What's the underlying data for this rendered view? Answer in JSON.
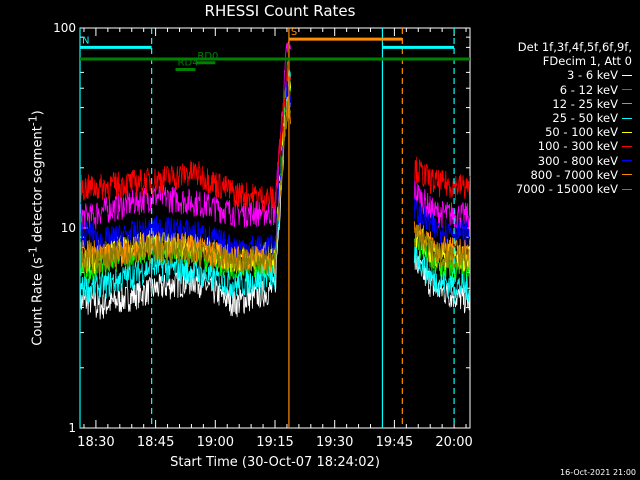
{
  "chart_data": {
    "type": "line",
    "title": "RHESSI Count Rates",
    "xlabel": "Start Time (30-Oct-07 18:24:02)",
    "ylabel": "Count Rate (s",
    "ylabel_sup1": "-1",
    "ylabel_mid": " detector segment",
    "ylabel_sup2": "-1",
    "ylabel_end": ")",
    "y_scale": "log",
    "ylim": [
      1,
      100
    ],
    "y_ticks": [
      {
        "value": 1,
        "label": "1"
      },
      {
        "value": 10,
        "label": "10"
      },
      {
        "value": 100,
        "label": "100"
      }
    ],
    "xlim_minutes": [
      -4,
      94
    ],
    "x_ticks": [
      {
        "minutes": 0,
        "label": "18:30"
      },
      {
        "minutes": 15,
        "label": "18:45"
      },
      {
        "minutes": 30,
        "label": "19:00"
      },
      {
        "minutes": 45,
        "label": "19:15"
      },
      {
        "minutes": 60,
        "label": "19:30"
      },
      {
        "minutes": 75,
        "label": "19:45"
      },
      {
        "minutes": 90,
        "label": "20:00"
      }
    ],
    "legend_header": [
      "Det 1f,3f,4f,5f,6f,9f,",
      "FDecim 1, Att 0"
    ],
    "series": [
      {
        "name": "3 - 6 keV",
        "color": "#ffffff",
        "values": [
          {
            "x": 0,
            "y": 4.0
          },
          {
            "x": 15,
            "y": 5.0
          },
          {
            "x": 25,
            "y": 5.5
          },
          {
            "x": 35,
            "y": 4.2
          },
          {
            "x": 45,
            "y": 5.0
          },
          {
            "x": 48,
            "y": 50
          },
          {
            "x": 85,
            "y": 5.0
          },
          {
            "x": 94,
            "y": 4.3
          }
        ]
      },
      {
        "name": "6 - 12 keV",
        "color": "#ff00ff",
        "values": [
          {
            "x": 0,
            "y": 12
          },
          {
            "x": 15,
            "y": 14.5
          },
          {
            "x": 25,
            "y": 13.5
          },
          {
            "x": 35,
            "y": 12
          },
          {
            "x": 45,
            "y": 12
          },
          {
            "x": 48,
            "y": 80
          },
          {
            "x": 85,
            "y": 12
          },
          {
            "x": 94,
            "y": 11.5
          }
        ]
      },
      {
        "name": "12 - 25 keV",
        "color": "#00ff00",
        "values": [
          {
            "x": 0,
            "y": 6.5
          },
          {
            "x": 15,
            "y": 8
          },
          {
            "x": 25,
            "y": 7.5
          },
          {
            "x": 35,
            "y": 6.3
          },
          {
            "x": 45,
            "y": 6.5
          },
          {
            "x": 48,
            "y": 60
          },
          {
            "x": 85,
            "y": 6.5
          },
          {
            "x": 94,
            "y": 6.0
          }
        ]
      },
      {
        "name": "25 - 50 keV",
        "color": "#00ffff",
        "values": [
          {
            "x": 0,
            "y": 5.0
          },
          {
            "x": 15,
            "y": 6.5
          },
          {
            "x": 25,
            "y": 6.0
          },
          {
            "x": 35,
            "y": 5.2
          },
          {
            "x": 45,
            "y": 5.8
          },
          {
            "x": 48,
            "y": 55
          },
          {
            "x": 85,
            "y": 5.5
          },
          {
            "x": 94,
            "y": 5.0
          }
        ]
      },
      {
        "name": "50 - 100 keV",
        "color": "#ffff00",
        "values": [
          {
            "x": 0,
            "y": 7.5
          },
          {
            "x": 15,
            "y": 8.5
          },
          {
            "x": 25,
            "y": 8.2
          },
          {
            "x": 35,
            "y": 7.0
          },
          {
            "x": 45,
            "y": 7.5
          },
          {
            "x": 48,
            "y": 50
          },
          {
            "x": 85,
            "y": 7.5
          },
          {
            "x": 94,
            "y": 7.0
          }
        ]
      },
      {
        "name": "100 - 300 keV",
        "color": "#ff0000",
        "values": [
          {
            "x": 0,
            "y": 16
          },
          {
            "x": 15,
            "y": 17.5
          },
          {
            "x": 25,
            "y": 19
          },
          {
            "x": 35,
            "y": 15
          },
          {
            "x": 45,
            "y": 14
          },
          {
            "x": 48,
            "y": 60
          },
          {
            "x": 85,
            "y": 17
          },
          {
            "x": 94,
            "y": 16
          }
        ]
      },
      {
        "name": "300 - 800 keV",
        "color": "#0000ff",
        "values": [
          {
            "x": 0,
            "y": 8.5
          },
          {
            "x": 15,
            "y": 10
          },
          {
            "x": 25,
            "y": 9.5
          },
          {
            "x": 35,
            "y": 8.0
          },
          {
            "x": 45,
            "y": 8.0
          },
          {
            "x": 48,
            "y": 50
          },
          {
            "x": 85,
            "y": 10
          },
          {
            "x": 94,
            "y": 9.5
          }
        ]
      },
      {
        "name": "800 - 7000 keV",
        "color": "#ff8c00",
        "values": [
          {
            "x": 0,
            "y": 7.0
          },
          {
            "x": 15,
            "y": 8.5
          },
          {
            "x": 25,
            "y": 8.0
          },
          {
            "x": 35,
            "y": 7.0
          },
          {
            "x": 45,
            "y": 7.0
          },
          {
            "x": 48,
            "y": 40
          },
          {
            "x": 85,
            "y": 8.0
          },
          {
            "x": 94,
            "y": 7.5
          }
        ]
      },
      {
        "name": "7000 - 15000 keV",
        "color": "#8b7d00",
        "values": [
          {
            "x": 0,
            "y": 7.0
          },
          {
            "x": 15,
            "y": 8.0
          },
          {
            "x": 25,
            "y": 7.5
          },
          {
            "x": 35,
            "y": 7.0
          },
          {
            "x": 45,
            "y": 7.0
          },
          {
            "x": 48,
            "y": 40
          },
          {
            "x": 85,
            "y": 7.5
          },
          {
            "x": 94,
            "y": 7.0
          }
        ]
      }
    ],
    "data_gaps_minutes": [
      [
        49,
        80
      ]
    ],
    "vertical_markers": [
      {
        "minutes": -4,
        "color": "#00ffff",
        "style": "solid"
      },
      {
        "minutes": 14,
        "color": "#00ffff",
        "style": "dashed"
      },
      {
        "minutes": 48.5,
        "color": "#ff8c00",
        "style": "solid"
      },
      {
        "minutes": 72,
        "color": "#00ffff",
        "style": "solid"
      },
      {
        "minutes": 77,
        "color": "#ff8c00",
        "style": "dashed"
      },
      {
        "minutes": 90,
        "color": "#00ffff",
        "style": "dashed"
      }
    ],
    "flag_bars": [
      {
        "label": "N",
        "color": "#00ffff",
        "start": -4,
        "end": 14,
        "y": 80
      },
      {
        "label": "",
        "color": "#00ffff",
        "start": 72,
        "end": 90,
        "y": 80
      },
      {
        "label": "S",
        "color": "#ff8c00",
        "start": 48.5,
        "end": 77,
        "y": 88
      },
      {
        "label": "",
        "color": "#008000",
        "start": -4,
        "end": 94,
        "y": 70
      },
      {
        "label": "RD0",
        "color": "#008000",
        "start": 25,
        "end": 30,
        "y": 67
      },
      {
        "label": "RD4",
        "color": "#008000",
        "start": 20,
        "end": 25,
        "y": 62
      }
    ]
  },
  "footer_date": "16-Oct-2021 21:00"
}
